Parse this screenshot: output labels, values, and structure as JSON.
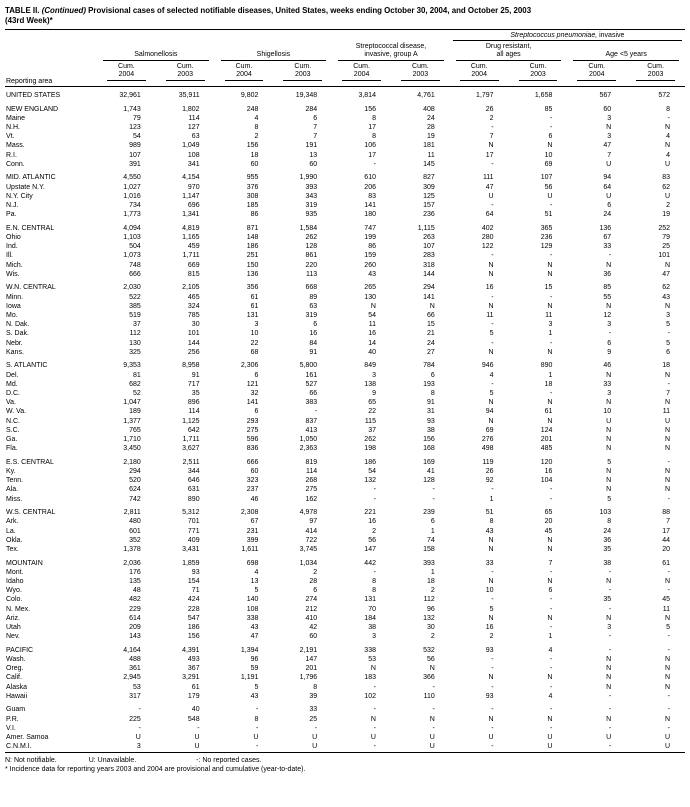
{
  "title": {
    "prefix": "TABLE II.",
    "continued": "(Continued)",
    "rest": "Provisional cases of selected notifiable diseases, United States, weeks ending October 30, 2004, and October 25, 2003",
    "line2": "(43rd Week)*"
  },
  "header": {
    "reporting_area": "Reporting area",
    "span_italic": "Streptococcus pneumoniae,",
    "span_rest": " invasive",
    "groups": [
      {
        "label": "Salmonellosis"
      },
      {
        "label": "Shigellosis"
      },
      {
        "label": "Streptococcal disease,\ninvasive, group A"
      },
      {
        "label": "Drug resistant,\nall ages"
      },
      {
        "label": "Age <5 years"
      }
    ],
    "col_labels": [
      "Cum.\n2004",
      "Cum.\n2003",
      "Cum.\n2004",
      "Cum.\n2003",
      "Cum.\n2004",
      "Cum.\n2003",
      "Cum.\n2004",
      "Cum.\n2003",
      "Cum.\n2004",
      "Cum.\n2003"
    ]
  },
  "rows": [
    {
      "area": "UNITED STATES",
      "gap_before": true,
      "values": [
        "32,961",
        "35,911",
        "9,802",
        "19,348",
        "3,814",
        "4,761",
        "1,797",
        "1,658",
        "567",
        "572"
      ]
    },
    {
      "area": "NEW ENGLAND",
      "gap_before": true,
      "values": [
        "1,743",
        "1,802",
        "248",
        "284",
        "156",
        "408",
        "26",
        "85",
        "60",
        "8"
      ]
    },
    {
      "area": "Maine",
      "gap_before": false,
      "values": [
        "79",
        "114",
        "4",
        "6",
        "8",
        "24",
        "2",
        "-",
        "3",
        "-"
      ]
    },
    {
      "area": "N.H.",
      "gap_before": false,
      "values": [
        "123",
        "127",
        "8",
        "7",
        "17",
        "28",
        "-",
        "-",
        "N",
        "N"
      ]
    },
    {
      "area": "Vt.",
      "gap_before": false,
      "values": [
        "54",
        "63",
        "2",
        "7",
        "8",
        "19",
        "7",
        "6",
        "3",
        "4"
      ]
    },
    {
      "area": "Mass.",
      "gap_before": false,
      "values": [
        "989",
        "1,049",
        "156",
        "191",
        "106",
        "181",
        "N",
        "N",
        "47",
        "N"
      ]
    },
    {
      "area": "R.I.",
      "gap_before": false,
      "values": [
        "107",
        "108",
        "18",
        "13",
        "17",
        "11",
        "17",
        "10",
        "7",
        "4"
      ]
    },
    {
      "area": "Conn.",
      "gap_before": false,
      "values": [
        "391",
        "341",
        "60",
        "60",
        "-",
        "145",
        "-",
        "69",
        "U",
        "U"
      ]
    },
    {
      "area": "MID. ATLANTIC",
      "gap_before": true,
      "values": [
        "4,550",
        "4,154",
        "955",
        "1,990",
        "610",
        "827",
        "111",
        "107",
        "94",
        "83"
      ]
    },
    {
      "area": "Upstate N.Y.",
      "gap_before": false,
      "values": [
        "1,027",
        "970",
        "376",
        "393",
        "206",
        "309",
        "47",
        "56",
        "64",
        "62"
      ]
    },
    {
      "area": "N.Y. City",
      "gap_before": false,
      "values": [
        "1,016",
        "1,147",
        "308",
        "343",
        "83",
        "125",
        "U",
        "U",
        "U",
        "U"
      ]
    },
    {
      "area": "N.J.",
      "gap_before": false,
      "values": [
        "734",
        "696",
        "185",
        "319",
        "141",
        "157",
        "-",
        "-",
        "6",
        "2"
      ]
    },
    {
      "area": "Pa.",
      "gap_before": false,
      "values": [
        "1,773",
        "1,341",
        "86",
        "935",
        "180",
        "236",
        "64",
        "51",
        "24",
        "19"
      ]
    },
    {
      "area": "E.N. CENTRAL",
      "gap_before": true,
      "values": [
        "4,094",
        "4,819",
        "871",
        "1,584",
        "747",
        "1,115",
        "402",
        "365",
        "136",
        "252"
      ]
    },
    {
      "area": "Ohio",
      "gap_before": false,
      "values": [
        "1,103",
        "1,165",
        "148",
        "262",
        "199",
        "263",
        "280",
        "236",
        "67",
        "79"
      ]
    },
    {
      "area": "Ind.",
      "gap_before": false,
      "values": [
        "504",
        "459",
        "186",
        "128",
        "86",
        "107",
        "122",
        "129",
        "33",
        "25"
      ]
    },
    {
      "area": "Ill.",
      "gap_before": false,
      "values": [
        "1,073",
        "1,711",
        "251",
        "861",
        "159",
        "283",
        "-",
        "-",
        "-",
        "101"
      ]
    },
    {
      "area": "Mich.",
      "gap_before": false,
      "values": [
        "748",
        "669",
        "150",
        "220",
        "260",
        "318",
        "N",
        "N",
        "N",
        "N"
      ]
    },
    {
      "area": "Wis.",
      "gap_before": false,
      "values": [
        "666",
        "815",
        "136",
        "113",
        "43",
        "144",
        "N",
        "N",
        "36",
        "47"
      ]
    },
    {
      "area": "W.N. CENTRAL",
      "gap_before": true,
      "values": [
        "2,030",
        "2,105",
        "356",
        "668",
        "265",
        "294",
        "16",
        "15",
        "85",
        "62"
      ]
    },
    {
      "area": "Minn.",
      "gap_before": false,
      "values": [
        "522",
        "465",
        "61",
        "89",
        "130",
        "141",
        "-",
        "-",
        "55",
        "43"
      ]
    },
    {
      "area": "Iowa",
      "gap_before": false,
      "values": [
        "385",
        "324",
        "61",
        "63",
        "N",
        "N",
        "N",
        "N",
        "N",
        "N"
      ]
    },
    {
      "area": "Mo.",
      "gap_before": false,
      "values": [
        "519",
        "785",
        "131",
        "319",
        "54",
        "66",
        "11",
        "11",
        "12",
        "3"
      ]
    },
    {
      "area": "N. Dak.",
      "gap_before": false,
      "values": [
        "37",
        "30",
        "3",
        "6",
        "11",
        "15",
        "-",
        "3",
        "3",
        "5"
      ]
    },
    {
      "area": "S. Dak.",
      "gap_before": false,
      "values": [
        "112",
        "101",
        "10",
        "16",
        "16",
        "21",
        "5",
        "1",
        "-",
        "-"
      ]
    },
    {
      "area": "Nebr.",
      "gap_before": false,
      "values": [
        "130",
        "144",
        "22",
        "84",
        "14",
        "24",
        "-",
        "-",
        "6",
        "5"
      ]
    },
    {
      "area": "Kans.",
      "gap_before": false,
      "values": [
        "325",
        "256",
        "68",
        "91",
        "40",
        "27",
        "N",
        "N",
        "9",
        "6"
      ]
    },
    {
      "area": "S. ATLANTIC",
      "gap_before": true,
      "values": [
        "9,353",
        "8,958",
        "2,306",
        "5,800",
        "849",
        "784",
        "946",
        "890",
        "46",
        "18"
      ]
    },
    {
      "area": "Del.",
      "gap_before": false,
      "values": [
        "81",
        "91",
        "6",
        "161",
        "3",
        "6",
        "4",
        "1",
        "N",
        "N"
      ]
    },
    {
      "area": "Md.",
      "gap_before": false,
      "values": [
        "682",
        "717",
        "121",
        "527",
        "138",
        "193",
        "-",
        "18",
        "33",
        "-"
      ]
    },
    {
      "area": "D.C.",
      "gap_before": false,
      "values": [
        "52",
        "35",
        "32",
        "66",
        "9",
        "8",
        "5",
        "-",
        "3",
        "7"
      ]
    },
    {
      "area": "Va.",
      "gap_before": false,
      "values": [
        "1,047",
        "896",
        "141",
        "383",
        "65",
        "91",
        "N",
        "N",
        "N",
        "N"
      ]
    },
    {
      "area": "W. Va.",
      "gap_before": false,
      "values": [
        "189",
        "114",
        "6",
        "-",
        "22",
        "31",
        "94",
        "61",
        "10",
        "11"
      ]
    },
    {
      "area": "N.C.",
      "gap_before": false,
      "values": [
        "1,377",
        "1,125",
        "293",
        "837",
        "115",
        "93",
        "N",
        "N",
        "U",
        "U"
      ]
    },
    {
      "area": "S.C.",
      "gap_before": false,
      "values": [
        "765",
        "642",
        "275",
        "413",
        "37",
        "38",
        "69",
        "124",
        "N",
        "N"
      ]
    },
    {
      "area": "Ga.",
      "gap_before": false,
      "values": [
        "1,710",
        "1,711",
        "596",
        "1,050",
        "262",
        "156",
        "276",
        "201",
        "N",
        "N"
      ]
    },
    {
      "area": "Fla.",
      "gap_before": false,
      "values": [
        "3,450",
        "3,627",
        "836",
        "2,363",
        "198",
        "168",
        "498",
        "485",
        "N",
        "N"
      ]
    },
    {
      "area": "E.S. CENTRAL",
      "gap_before": true,
      "values": [
        "2,180",
        "2,511",
        "666",
        "819",
        "186",
        "169",
        "119",
        "120",
        "5",
        "-"
      ]
    },
    {
      "area": "Ky.",
      "gap_before": false,
      "values": [
        "294",
        "344",
        "60",
        "114",
        "54",
        "41",
        "26",
        "16",
        "N",
        "N"
      ]
    },
    {
      "area": "Tenn.",
      "gap_before": false,
      "values": [
        "520",
        "646",
        "323",
        "268",
        "132",
        "128",
        "92",
        "104",
        "N",
        "N"
      ]
    },
    {
      "area": "Ala.",
      "gap_before": false,
      "values": [
        "624",
        "631",
        "237",
        "275",
        "-",
        "-",
        "-",
        "-",
        "N",
        "N"
      ]
    },
    {
      "area": "Miss.",
      "gap_before": false,
      "values": [
        "742",
        "890",
        "46",
        "162",
        "-",
        "-",
        "1",
        "-",
        "5",
        "-"
      ]
    },
    {
      "area": "W.S. CENTRAL",
      "gap_before": true,
      "values": [
        "2,811",
        "5,312",
        "2,308",
        "4,978",
        "221",
        "239",
        "51",
        "65",
        "103",
        "88"
      ]
    },
    {
      "area": "Ark.",
      "gap_before": false,
      "values": [
        "480",
        "701",
        "67",
        "97",
        "16",
        "6",
        "8",
        "20",
        "8",
        "7"
      ]
    },
    {
      "area": "La.",
      "gap_before": false,
      "values": [
        "601",
        "771",
        "231",
        "414",
        "2",
        "1",
        "43",
        "45",
        "24",
        "17"
      ]
    },
    {
      "area": "Okla.",
      "gap_before": false,
      "values": [
        "352",
        "409",
        "399",
        "722",
        "56",
        "74",
        "N",
        "N",
        "36",
        "44"
      ]
    },
    {
      "area": "Tex.",
      "gap_before": false,
      "values": [
        "1,378",
        "3,431",
        "1,611",
        "3,745",
        "147",
        "158",
        "N",
        "N",
        "35",
        "20"
      ]
    },
    {
      "area": "MOUNTAIN",
      "gap_before": true,
      "values": [
        "2,036",
        "1,859",
        "698",
        "1,034",
        "442",
        "393",
        "33",
        "7",
        "38",
        "61"
      ]
    },
    {
      "area": "Mont.",
      "gap_before": false,
      "values": [
        "176",
        "93",
        "4",
        "2",
        "-",
        "1",
        "-",
        "-",
        "-",
        "-"
      ]
    },
    {
      "area": "Idaho",
      "gap_before": false,
      "values": [
        "135",
        "154",
        "13",
        "28",
        "8",
        "18",
        "N",
        "N",
        "N",
        "N"
      ]
    },
    {
      "area": "Wyo.",
      "gap_before": false,
      "values": [
        "48",
        "71",
        "5",
        "6",
        "8",
        "2",
        "10",
        "6",
        "-",
        "-"
      ]
    },
    {
      "area": "Colo.",
      "gap_before": false,
      "values": [
        "482",
        "424",
        "140",
        "274",
        "131",
        "112",
        "-",
        "-",
        "35",
        "45"
      ]
    },
    {
      "area": "N. Mex.",
      "gap_before": false,
      "values": [
        "229",
        "228",
        "108",
        "212",
        "70",
        "96",
        "5",
        "-",
        "-",
        "11"
      ]
    },
    {
      "area": "Ariz.",
      "gap_before": false,
      "values": [
        "614",
        "547",
        "338",
        "410",
        "184",
        "132",
        "N",
        "N",
        "N",
        "N"
      ]
    },
    {
      "area": "Utah",
      "gap_before": false,
      "values": [
        "209",
        "186",
        "43",
        "42",
        "38",
        "30",
        "16",
        "-",
        "3",
        "5"
      ]
    },
    {
      "area": "Nev.",
      "gap_before": false,
      "values": [
        "143",
        "156",
        "47",
        "60",
        "3",
        "2",
        "2",
        "1",
        "-",
        "-"
      ]
    },
    {
      "area": "PACIFIC",
      "gap_before": true,
      "values": [
        "4,164",
        "4,391",
        "1,394",
        "2,191",
        "338",
        "532",
        "93",
        "4",
        "-",
        "-"
      ]
    },
    {
      "area": "Wash.",
      "gap_before": false,
      "values": [
        "488",
        "493",
        "96",
        "147",
        "53",
        "56",
        "-",
        "-",
        "N",
        "N"
      ]
    },
    {
      "area": "Oreg.",
      "gap_before": false,
      "values": [
        "361",
        "367",
        "59",
        "201",
        "N",
        "N",
        "-",
        "-",
        "N",
        "N"
      ]
    },
    {
      "area": "Calif.",
      "gap_before": false,
      "values": [
        "2,945",
        "3,291",
        "1,191",
        "1,796",
        "183",
        "366",
        "N",
        "N",
        "N",
        "N"
      ]
    },
    {
      "area": "Alaska",
      "gap_before": false,
      "values": [
        "53",
        "61",
        "5",
        "8",
        "-",
        "-",
        "-",
        "-",
        "N",
        "N"
      ]
    },
    {
      "area": "Hawaii",
      "gap_before": false,
      "values": [
        "317",
        "179",
        "43",
        "39",
        "102",
        "110",
        "93",
        "4",
        "-",
        "-"
      ]
    },
    {
      "area": "Guam",
      "gap_before": true,
      "values": [
        "-",
        "40",
        "-",
        "33",
        "-",
        "-",
        "-",
        "-",
        "-",
        "-"
      ]
    },
    {
      "area": "P.R.",
      "gap_before": false,
      "values": [
        "225",
        "548",
        "8",
        "25",
        "N",
        "N",
        "N",
        "N",
        "N",
        "N"
      ]
    },
    {
      "area": "V.I.",
      "gap_before": false,
      "values": [
        "-",
        "-",
        "-",
        "-",
        "-",
        "-",
        "-",
        "-",
        "-",
        "-"
      ]
    },
    {
      "area": "Amer. Samoa",
      "gap_before": false,
      "values": [
        "U",
        "U",
        "U",
        "U",
        "U",
        "U",
        "U",
        "U",
        "U",
        "U"
      ]
    },
    {
      "area": "C.N.M.I.",
      "gap_before": false,
      "values": [
        "3",
        "U",
        "-",
        "U",
        "-",
        "U",
        "-",
        "U",
        "-",
        "U"
      ]
    }
  ],
  "footnotes": {
    "legend": [
      "N: Not notifiable.",
      "U: Unavailable.",
      "-: No reported cases."
    ],
    "note": "* Incidence data for reporting years 2003 and 2004 are provisional and cumulative (year-to-date)."
  }
}
